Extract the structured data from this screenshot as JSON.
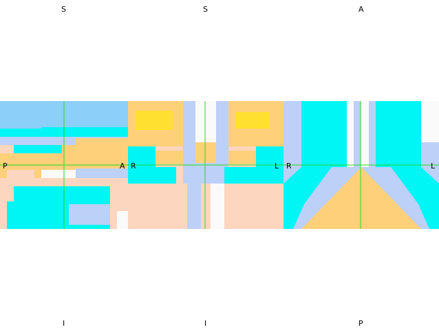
{
  "views": [
    {
      "id": "sagittal",
      "labels": {
        "top": "S",
        "bottom": "I",
        "left": "P",
        "right": "A"
      }
    },
    {
      "id": "coronal",
      "labels": {
        "top": "S",
        "bottom": "I",
        "left": "R",
        "right": "L"
      }
    },
    {
      "id": "axial",
      "labels": {
        "top": "A",
        "bottom": "P",
        "left": "R",
        "right": "L"
      }
    }
  ],
  "colors": {
    "background": "#ffffff",
    "crosshair": "#22dd22",
    "cyan": "#00f5f5",
    "light-blue": "#8ccff8",
    "pale-blue": "#bcd0f8",
    "orange": "#fed07a",
    "yellow": "#ffe030",
    "peach": "#fdd6c0",
    "white": "#fafafa"
  }
}
